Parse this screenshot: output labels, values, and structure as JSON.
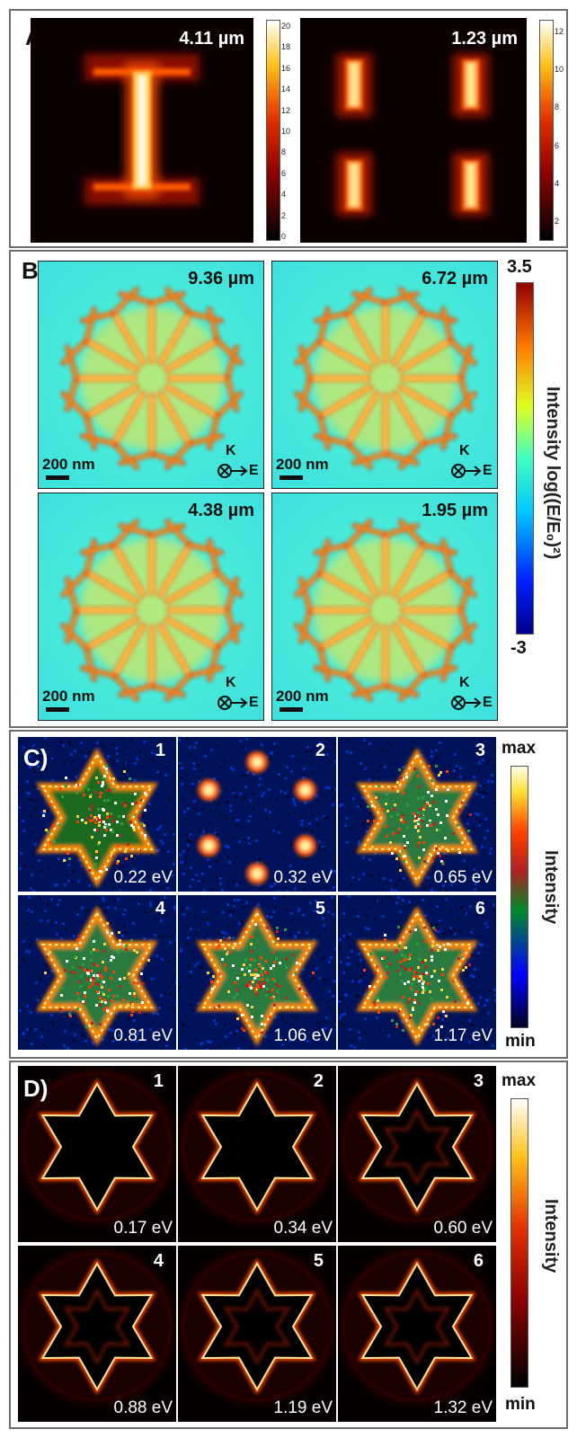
{
  "panel_a": {
    "label": "A)",
    "images": [
      {
        "wavelength": "4.11 µm"
      },
      {
        "wavelength": "1.23 µm"
      }
    ],
    "colorbar1_ticks": [
      "20",
      "18",
      "16",
      "14",
      "12",
      "10",
      "8",
      "6",
      "4",
      "2",
      "0"
    ],
    "colorbar2_ticks": [
      "12",
      "10",
      "8",
      "6",
      "4",
      "2"
    ]
  },
  "panel_b": {
    "label": "B)",
    "images": [
      {
        "wavelength": "9.36 µm"
      },
      {
        "wavelength": "6.72 µm"
      },
      {
        "wavelength": "4.38 µm"
      },
      {
        "wavelength": "1.95 µm"
      }
    ],
    "scale_text": "200 nm",
    "k_label": "K",
    "e_label": "E",
    "colorbar_max": "3.5",
    "colorbar_min": "-3",
    "colorbar_label": "Intensity log((E/E₀)²)"
  },
  "panel_c": {
    "label": "C)",
    "tiles": [
      {
        "index": "1",
        "energy": "0.22 eV"
      },
      {
        "index": "2",
        "energy": "0.32 eV"
      },
      {
        "index": "3",
        "energy": "0.65 eV"
      },
      {
        "index": "4",
        "energy": "0.81 eV"
      },
      {
        "index": "5",
        "energy": "1.06 eV"
      },
      {
        "index": "6",
        "energy": "1.17 eV"
      }
    ],
    "colorbar_max": "max",
    "colorbar_min": "min",
    "colorbar_label": "Intensity"
  },
  "panel_d": {
    "label": "D)",
    "tiles": [
      {
        "index": "1",
        "energy": "0.17 eV"
      },
      {
        "index": "2",
        "energy": "0.34 eV"
      },
      {
        "index": "3",
        "energy": "0.60 eV"
      },
      {
        "index": "4",
        "energy": "0.88 eV"
      },
      {
        "index": "5",
        "energy": "1.19 eV"
      },
      {
        "index": "6",
        "energy": "1.32 eV"
      }
    ],
    "colorbar_max": "max",
    "colorbar_min": "min",
    "colorbar_label": "Intensity"
  }
}
